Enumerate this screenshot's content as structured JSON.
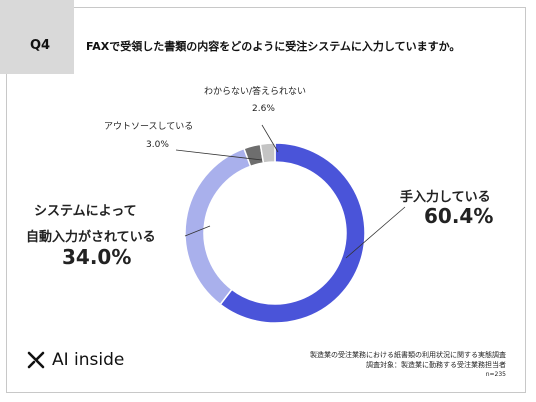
{
  "header": {
    "badge": "Q4",
    "question": "FAXで受領した書類の内容をどのように受注システムに入力していますか。"
  },
  "chart_data": {
    "type": "donut",
    "start": "top",
    "direction": "clockwise",
    "slices": [
      {
        "label": "手入力している",
        "value": 60.4,
        "display": "60.4%",
        "color": "#4a54d9"
      },
      {
        "label": "システムによって自動入力がされている",
        "value": 34.0,
        "display": "34.0%",
        "color": "#a9b0ec"
      },
      {
        "label": "アウトソースしている",
        "value": 3.0,
        "display": "3.0%",
        "color": "#6e6e6e"
      },
      {
        "label": "わからない/答えられない",
        "value": 2.6,
        "display": "2.6%",
        "color": "#c4c4c4"
      }
    ]
  },
  "labels": {
    "manual_name": "手入力している",
    "manual_value": "60.4%",
    "auto_name_1": "システムによって",
    "auto_name_2": "自動入力がされている",
    "auto_value": "34.0%",
    "outsource_name": "アウトソースしている",
    "outsource_value": "3.0%",
    "unknown_name": "わからない/答えられない",
    "unknown_value": "2.6%"
  },
  "footer": {
    "logo_text": "AI inside",
    "line1": "製造業の受注業務における紙書類の利用状況に関する実態調査",
    "line2": "調査対象：製造業に勤務する受注業務担当者",
    "line3": "n=235"
  }
}
